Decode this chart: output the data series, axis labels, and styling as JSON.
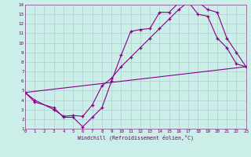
{
  "xlabel": "Windchill (Refroidissement éolien,°C)",
  "xlim": [
    0,
    23
  ],
  "ylim": [
    1,
    14
  ],
  "xticks": [
    0,
    1,
    2,
    3,
    4,
    5,
    6,
    7,
    8,
    9,
    10,
    11,
    12,
    13,
    14,
    15,
    16,
    17,
    18,
    19,
    20,
    21,
    22,
    23
  ],
  "yticks": [
    1,
    2,
    3,
    4,
    5,
    6,
    7,
    8,
    9,
    10,
    11,
    12,
    13,
    14
  ],
  "background_color": "#cceee8",
  "grid_color": "#a8c8c8",
  "line_color": "#880088",
  "curve1_x": [
    0,
    1,
    3,
    4,
    5,
    6,
    7,
    8,
    9,
    10,
    11,
    12,
    13,
    14,
    15,
    16,
    17,
    18,
    19,
    20,
    21,
    22,
    23
  ],
  "curve1_y": [
    4.8,
    3.8,
    3.2,
    2.2,
    2.2,
    1.2,
    2.2,
    3.2,
    6.0,
    8.7,
    11.2,
    11.4,
    11.5,
    13.2,
    13.2,
    14.2,
    14.3,
    13.0,
    12.8,
    10.5,
    9.5,
    7.8,
    7.5
  ],
  "curve2_x": [
    0,
    1,
    3,
    4,
    5,
    6,
    7,
    8,
    9,
    10,
    11,
    12,
    13,
    14,
    15,
    16,
    17,
    18,
    19,
    20,
    21,
    22,
    23
  ],
  "curve2_y": [
    4.8,
    4.0,
    3.0,
    2.3,
    2.4,
    2.3,
    3.5,
    5.5,
    6.3,
    7.5,
    8.5,
    9.5,
    10.5,
    11.5,
    12.5,
    13.5,
    14.3,
    14.3,
    13.5,
    13.2,
    10.5,
    9.0,
    7.5
  ],
  "curve3_x": [
    0,
    23
  ],
  "curve3_y": [
    4.8,
    7.5
  ]
}
